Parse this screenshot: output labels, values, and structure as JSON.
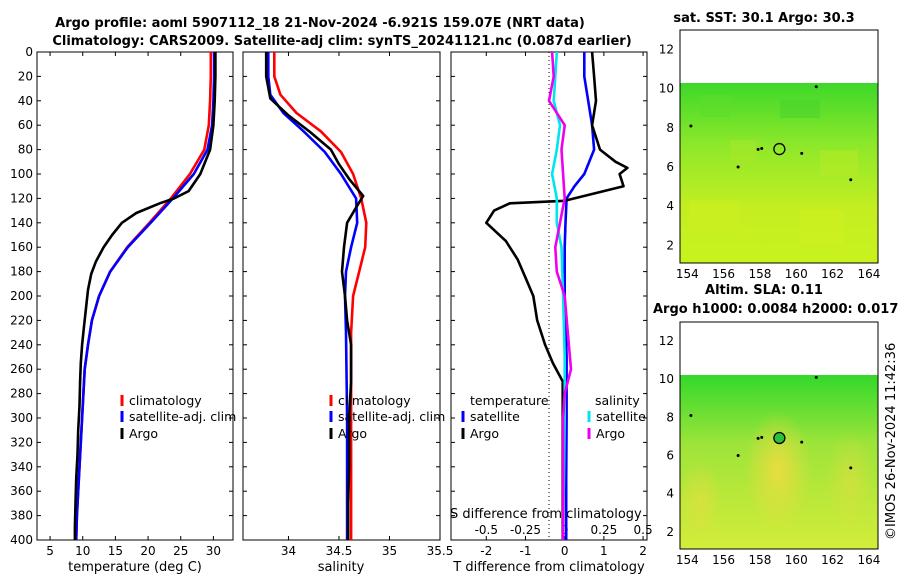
{
  "titles": {
    "line1": "Argo profile: aoml 5907112_18 21-Nov-2024 -6.921S 159.07E (NRT data)",
    "line2": "Climatology: CARS2009. Satellite-adj clim: synTS_20241121.nc (0.087d earlier)",
    "sst": "sat. SST: 30.1 Argo: 30.3",
    "sla1": "Altim. SLA: 0.11",
    "sla2": "Argo h1000: 0.0084 h2000: 0.017"
  },
  "timestamp": "©IMOS 26-Nov-2024 11:42:36",
  "colors": {
    "climatology": "#ff0000",
    "satellite": "#0000ff",
    "argo": "#000000",
    "sal_satellite": "#00e5ee",
    "sal_argo": "#ee00ee"
  },
  "chart_data": [
    {
      "type": "line",
      "name": "temperature-panel",
      "xlabel": "temperature (deg C)",
      "ylabel": "pressure",
      "xlim": [
        3,
        33
      ],
      "ylim": [
        400,
        0
      ],
      "xticks": [
        "5",
        "10",
        "15",
        "20",
        "25",
        "30"
      ],
      "xtick_values": [
        5,
        10,
        15,
        20,
        25,
        30
      ],
      "yticks": [
        "0",
        "20",
        "40",
        "60",
        "80",
        "100",
        "120",
        "140",
        "160",
        "180",
        "200",
        "220",
        "240",
        "260",
        "280",
        "300",
        "320",
        "340",
        "360",
        "380",
        "400"
      ],
      "ytick_values": [
        0,
        20,
        40,
        60,
        80,
        100,
        120,
        140,
        160,
        180,
        200,
        220,
        240,
        260,
        280,
        300,
        320,
        340,
        360,
        380,
        400
      ],
      "legend": [
        "climatology",
        "satellite-adj. clim",
        "Argo"
      ],
      "series": [
        {
          "name": "climatology",
          "color": "#ff0000",
          "points": [
            [
              29.6,
              0
            ],
            [
              29.6,
              20
            ],
            [
              29.5,
              40
            ],
            [
              29.3,
              60
            ],
            [
              28.6,
              80
            ],
            [
              26.4,
              100
            ],
            [
              23.5,
              120
            ],
            [
              20.2,
              140
            ],
            [
              16.8,
              160
            ],
            [
              14.2,
              180
            ],
            [
              12.5,
              200
            ],
            [
              11.4,
              220
            ],
            [
              10.8,
              240
            ],
            [
              10.3,
              260
            ],
            [
              10.1,
              280
            ],
            [
              9.9,
              300
            ],
            [
              9.7,
              320
            ],
            [
              9.5,
              340
            ],
            [
              9.3,
              360
            ],
            [
              9.1,
              380
            ],
            [
              9.0,
              400
            ]
          ]
        },
        {
          "name": "satellite-adj. clim",
          "color": "#0000ff",
          "points": [
            [
              30.1,
              0
            ],
            [
              30.1,
              20
            ],
            [
              30.0,
              40
            ],
            [
              29.8,
              60
            ],
            [
              29.1,
              80
            ],
            [
              27.0,
              100
            ],
            [
              23.8,
              120
            ],
            [
              20.4,
              140
            ],
            [
              16.9,
              160
            ],
            [
              14.2,
              180
            ],
            [
              12.5,
              200
            ],
            [
              11.4,
              220
            ],
            [
              10.8,
              240
            ],
            [
              10.3,
              260
            ],
            [
              10.1,
              280
            ],
            [
              9.9,
              300
            ],
            [
              9.7,
              320
            ],
            [
              9.5,
              340
            ],
            [
              9.3,
              360
            ],
            [
              9.1,
              380
            ],
            [
              9.0,
              400
            ]
          ]
        },
        {
          "name": "Argo",
          "color": "#000000",
          "points": [
            [
              30.3,
              0
            ],
            [
              30.3,
              20
            ],
            [
              30.2,
              40
            ],
            [
              30.0,
              60
            ],
            [
              29.5,
              80
            ],
            [
              28.0,
              100
            ],
            [
              26.2,
              114
            ],
            [
              24.0,
              120
            ],
            [
              21.8,
              124
            ],
            [
              18.2,
              132
            ],
            [
              16.0,
              140
            ],
            [
              14.5,
              150
            ],
            [
              13.2,
              160
            ],
            [
              12.0,
              172
            ],
            [
              11.3,
              182
            ],
            [
              10.8,
              195
            ],
            [
              10.5,
              210
            ],
            [
              10.2,
              225
            ],
            [
              9.9,
              240
            ],
            [
              9.7,
              255
            ],
            [
              9.6,
              270
            ],
            [
              9.5,
              290
            ],
            [
              9.3,
              310
            ],
            [
              9.2,
              330
            ],
            [
              9.0,
              350
            ],
            [
              8.9,
              370
            ],
            [
              8.8,
              390
            ],
            [
              8.8,
              400
            ]
          ]
        }
      ]
    },
    {
      "type": "line",
      "name": "salinity-panel",
      "xlabel": "salinity",
      "xlim": [
        33.55,
        35.5
      ],
      "ylim": [
        400,
        0
      ],
      "xticks": [
        "34",
        "34.5",
        "35",
        "35.5"
      ],
      "xtick_values": [
        34,
        34.5,
        35,
        35.5
      ],
      "legend": [
        "climatology",
        "satellite-adj. clim",
        "Argo"
      ],
      "series": [
        {
          "name": "climatology",
          "color": "#ff0000",
          "points": [
            [
              33.86,
              0
            ],
            [
              33.86,
              20
            ],
            [
              33.92,
              35
            ],
            [
              34.08,
              50
            ],
            [
              34.32,
              65
            ],
            [
              34.52,
              82
            ],
            [
              34.64,
              100
            ],
            [
              34.72,
              120
            ],
            [
              34.77,
              140
            ],
            [
              34.76,
              160
            ],
            [
              34.7,
              180
            ],
            [
              34.64,
              200
            ],
            [
              34.62,
              230
            ],
            [
              34.62,
              300
            ],
            [
              34.62,
              400
            ]
          ]
        },
        {
          "name": "satellite-adj. clim",
          "color": "#0000ff",
          "points": [
            [
              33.8,
              0
            ],
            [
              33.8,
              20
            ],
            [
              33.82,
              35
            ],
            [
              33.95,
              50
            ],
            [
              34.15,
              65
            ],
            [
              34.36,
              82
            ],
            [
              34.52,
              100
            ],
            [
              34.67,
              120
            ],
            [
              34.68,
              140
            ],
            [
              34.62,
              160
            ],
            [
              34.57,
              180
            ],
            [
              34.56,
              200
            ],
            [
              34.57,
              230
            ],
            [
              34.58,
              300
            ],
            [
              34.58,
              400
            ]
          ]
        },
        {
          "name": "Argo",
          "color": "#000000",
          "points": [
            [
              33.78,
              0
            ],
            [
              33.78,
              20
            ],
            [
              33.82,
              38
            ],
            [
              34.0,
              52
            ],
            [
              34.22,
              66
            ],
            [
              34.42,
              80
            ],
            [
              34.5,
              92
            ],
            [
              34.6,
              104
            ],
            [
              34.74,
              118
            ],
            [
              34.68,
              126
            ],
            [
              34.58,
              140
            ],
            [
              34.55,
              160
            ],
            [
              34.53,
              180
            ],
            [
              34.56,
              200
            ],
            [
              34.58,
              220
            ],
            [
              34.62,
              240
            ],
            [
              34.62,
              270
            ],
            [
              34.6,
              300
            ],
            [
              34.6,
              340
            ],
            [
              34.59,
              370
            ],
            [
              34.59,
              400
            ]
          ]
        }
      ]
    },
    {
      "type": "line",
      "name": "difference-panel",
      "xlabel": "T difference from climatology",
      "xlabel_top": "S difference from climatology",
      "xlim": [
        -2.9,
        2.1
      ],
      "ylim": [
        400,
        0
      ],
      "xticks": [
        "-2",
        "-1",
        "0",
        "1",
        "2"
      ],
      "xtick_values": [
        -2,
        -1,
        0,
        1,
        2
      ],
      "sticks": [
        "-0.5",
        "-0.25",
        "0",
        "0.25",
        "0.5"
      ],
      "stick_values": [
        -0.5,
        -0.25,
        0,
        0.25,
        0.5
      ],
      "legend_left": [
        "temperature",
        "satellite",
        "Argo"
      ],
      "legend_right": [
        "salinity",
        "satellite",
        "Argo"
      ],
      "series": [
        {
          "name": "T satellite",
          "color": "#0000ff",
          "points": [
            [
              0.5,
              0
            ],
            [
              0.5,
              20
            ],
            [
              0.6,
              40
            ],
            [
              0.7,
              60
            ],
            [
              0.75,
              80
            ],
            [
              0.5,
              100
            ],
            [
              0.25,
              110
            ],
            [
              0.05,
              120
            ],
            [
              0.02,
              140
            ],
            [
              0.0,
              160
            ],
            [
              0.0,
              200
            ],
            [
              0.05,
              250
            ],
            [
              0.05,
              300
            ],
            [
              0.04,
              350
            ],
            [
              0.04,
              400
            ]
          ]
        },
        {
          "name": "T Argo",
          "color": "#000000",
          "points": [
            [
              0.7,
              0
            ],
            [
              0.75,
              20
            ],
            [
              0.8,
              40
            ],
            [
              0.7,
              60
            ],
            [
              0.9,
              80
            ],
            [
              1.3,
              90
            ],
            [
              1.6,
              95
            ],
            [
              1.4,
              100
            ],
            [
              1.5,
              110
            ],
            [
              0.0,
              122
            ],
            [
              -1.4,
              124
            ],
            [
              -1.8,
              130
            ],
            [
              -2.0,
              140
            ],
            [
              -1.5,
              155
            ],
            [
              -1.2,
              170
            ],
            [
              -1.0,
              185
            ],
            [
              -0.8,
              200
            ],
            [
              -0.7,
              220
            ],
            [
              -0.5,
              240
            ],
            [
              -0.3,
              255
            ],
            [
              -0.05,
              270
            ],
            [
              -0.05,
              300
            ],
            [
              -0.05,
              350
            ],
            [
              -0.05,
              400
            ]
          ]
        },
        {
          "name": "S satellite",
          "color": "#00e5ee",
          "points": [
            [
              -0.05,
              0
            ],
            [
              -0.06,
              20
            ],
            [
              -0.07,
              40
            ],
            [
              -0.03,
              60
            ],
            [
              -0.05,
              80
            ],
            [
              -0.08,
              100
            ],
            [
              -0.05,
              120
            ],
            [
              -0.05,
              140
            ],
            [
              -0.02,
              160
            ],
            [
              -0.01,
              200
            ],
            [
              0.0,
              250
            ],
            [
              0.0,
              300
            ],
            [
              -0.01,
              400
            ]
          ]
        },
        {
          "name": "S Argo",
          "color": "#ee00ee",
          "points": [
            [
              -0.08,
              0
            ],
            [
              -0.07,
              20
            ],
            [
              -0.1,
              40
            ],
            [
              0.0,
              60
            ],
            [
              -0.02,
              80
            ],
            [
              -0.01,
              100
            ],
            [
              0.0,
              120
            ],
            [
              -0.03,
              140
            ],
            [
              -0.06,
              160
            ],
            [
              -0.05,
              180
            ],
            [
              0.0,
              200
            ],
            [
              0.02,
              230
            ],
            [
              0.04,
              260
            ],
            [
              0.0,
              280
            ],
            [
              -0.01,
              300
            ],
            [
              -0.01,
              400
            ]
          ]
        }
      ]
    },
    {
      "type": "heatmap",
      "name": "sst-map",
      "title": "sat. SST: 30.1 Argo: 30.3",
      "xlim": [
        153.6,
        164.5
      ],
      "ylim": [
        1.1,
        13
      ],
      "data_top_lat": 10.1,
      "xticks": [
        "154",
        "156",
        "158",
        "160",
        "162",
        "164"
      ],
      "xtick_values": [
        154,
        156,
        158,
        160,
        162,
        164
      ],
      "yticks": [
        "2",
        "4",
        "6",
        "8",
        "10",
        "12"
      ],
      "ytick_values": [
        2,
        4,
        6,
        8,
        10,
        12
      ],
      "float_position": [
        159.07,
        6.92
      ]
    },
    {
      "type": "heatmap",
      "name": "sla-map",
      "title": "Altim. SLA: 0.11",
      "xlim": [
        153.6,
        164.5
      ],
      "ylim": [
        1.1,
        13
      ],
      "data_top_lat": 10.1,
      "xticks": [
        "154",
        "156",
        "158",
        "160",
        "162",
        "164"
      ],
      "xtick_values": [
        154,
        156,
        158,
        160,
        162,
        164
      ],
      "yticks": [
        "2",
        "4",
        "6",
        "8",
        "10",
        "12"
      ],
      "ytick_values": [
        2,
        4,
        6,
        8,
        10,
        12
      ],
      "float_position": [
        159.07,
        6.92
      ]
    }
  ]
}
